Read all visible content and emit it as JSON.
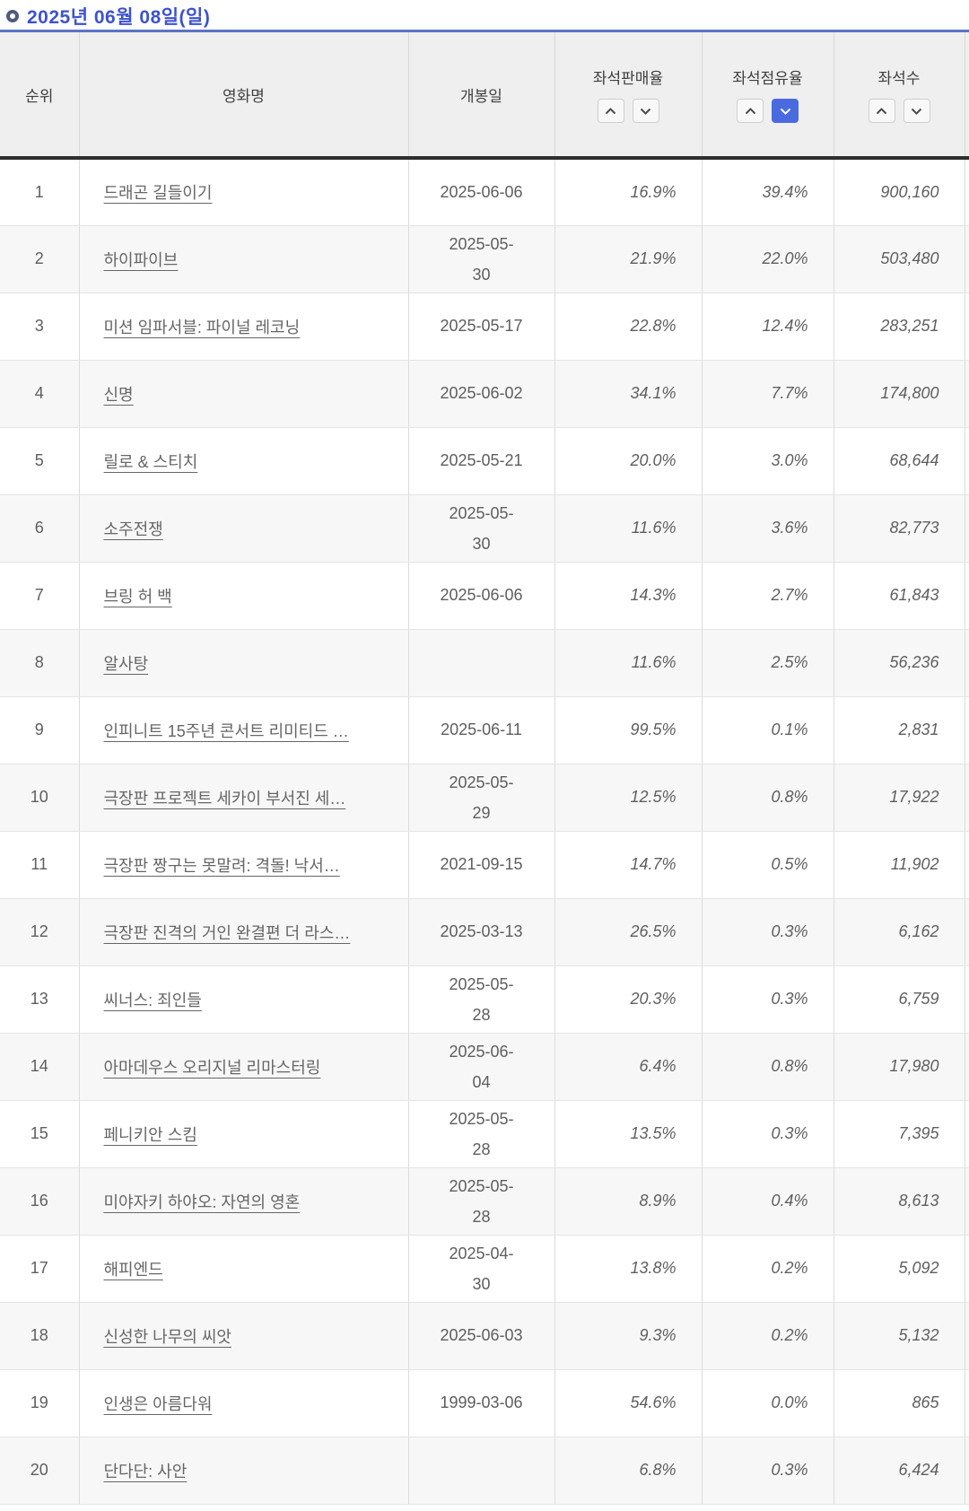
{
  "page": {
    "date_title": "2025년 06월 08일(일)"
  },
  "colors": {
    "accent_blue": "#4a6be0",
    "title_blue": "#3d52cf",
    "rule_blue": "#5b74c8"
  },
  "table": {
    "columns": {
      "rank": "순위",
      "title": "영화명",
      "release": "개봉일",
      "seat_sales_rate": "좌석판매율",
      "seat_share_rate": "좌석점유율",
      "seat_count": "좌석수"
    },
    "sort": {
      "active_column": "seat_share_rate",
      "active_direction": "desc"
    },
    "rows": [
      {
        "rank": "1",
        "title": "드래곤 길들이기",
        "release": "2025-06-06",
        "release_wrapped": false,
        "seat_sales_rate": "16.9%",
        "seat_share_rate": "39.4%",
        "seat_count": "900,160"
      },
      {
        "rank": "2",
        "title": "하이파이브",
        "release": "2025-05-30",
        "release_wrapped": true,
        "seat_sales_rate": "21.9%",
        "seat_share_rate": "22.0%",
        "seat_count": "503,480"
      },
      {
        "rank": "3",
        "title": "미션 임파서블: 파이널 레코닝",
        "release": "2025-05-17",
        "release_wrapped": false,
        "seat_sales_rate": "22.8%",
        "seat_share_rate": "12.4%",
        "seat_count": "283,251"
      },
      {
        "rank": "4",
        "title": "신명",
        "release": "2025-06-02",
        "release_wrapped": false,
        "seat_sales_rate": "34.1%",
        "seat_share_rate": "7.7%",
        "seat_count": "174,800"
      },
      {
        "rank": "5",
        "title": "릴로 & 스티치",
        "release": "2025-05-21",
        "release_wrapped": false,
        "seat_sales_rate": "20.0%",
        "seat_share_rate": "3.0%",
        "seat_count": "68,644"
      },
      {
        "rank": "6",
        "title": "소주전쟁",
        "release": "2025-05-30",
        "release_wrapped": true,
        "seat_sales_rate": "11.6%",
        "seat_share_rate": "3.6%",
        "seat_count": "82,773"
      },
      {
        "rank": "7",
        "title": "브링 허 백",
        "release": "2025-06-06",
        "release_wrapped": false,
        "seat_sales_rate": "14.3%",
        "seat_share_rate": "2.7%",
        "seat_count": "61,843"
      },
      {
        "rank": "8",
        "title": "알사탕",
        "release": "",
        "release_wrapped": false,
        "seat_sales_rate": "11.6%",
        "seat_share_rate": "2.5%",
        "seat_count": "56,236"
      },
      {
        "rank": "9",
        "title": "인피니트 15주년 콘서트 리미티드 …",
        "release": "2025-06-11",
        "release_wrapped": false,
        "seat_sales_rate": "99.5%",
        "seat_share_rate": "0.1%",
        "seat_count": "2,831"
      },
      {
        "rank": "10",
        "title": "극장판 프로젝트 세카이 부서진 세…",
        "release": "2025-05-29",
        "release_wrapped": true,
        "seat_sales_rate": "12.5%",
        "seat_share_rate": "0.8%",
        "seat_count": "17,922"
      },
      {
        "rank": "11",
        "title": "극장판 짱구는 못말려: 격돌! 낙서…",
        "release": "2021-09-15",
        "release_wrapped": false,
        "seat_sales_rate": "14.7%",
        "seat_share_rate": "0.5%",
        "seat_count": "11,902"
      },
      {
        "rank": "12",
        "title": "극장판 진격의 거인 완결편 더 라스…",
        "release": "2025-03-13",
        "release_wrapped": false,
        "seat_sales_rate": "26.5%",
        "seat_share_rate": "0.3%",
        "seat_count": "6,162"
      },
      {
        "rank": "13",
        "title": "씨너스: 죄인들",
        "release": "2025-05-28",
        "release_wrapped": true,
        "seat_sales_rate": "20.3%",
        "seat_share_rate": "0.3%",
        "seat_count": "6,759"
      },
      {
        "rank": "14",
        "title": "아마데우스 오리지널 리마스터링",
        "release": "2025-06-04",
        "release_wrapped": true,
        "seat_sales_rate": "6.4%",
        "seat_share_rate": "0.8%",
        "seat_count": "17,980"
      },
      {
        "rank": "15",
        "title": "페니키안 스킴",
        "release": "2025-05-28",
        "release_wrapped": true,
        "seat_sales_rate": "13.5%",
        "seat_share_rate": "0.3%",
        "seat_count": "7,395"
      },
      {
        "rank": "16",
        "title": "미야자키 하야오: 자연의 영혼",
        "release": "2025-05-28",
        "release_wrapped": true,
        "seat_sales_rate": "8.9%",
        "seat_share_rate": "0.4%",
        "seat_count": "8,613"
      },
      {
        "rank": "17",
        "title": "해피엔드",
        "release": "2025-04-30",
        "release_wrapped": true,
        "seat_sales_rate": "13.8%",
        "seat_share_rate": "0.2%",
        "seat_count": "5,092"
      },
      {
        "rank": "18",
        "title": "신성한 나무의 씨앗",
        "release": "2025-06-03",
        "release_wrapped": false,
        "seat_sales_rate": "9.3%",
        "seat_share_rate": "0.2%",
        "seat_count": "5,132"
      },
      {
        "rank": "19",
        "title": "인생은 아름다워",
        "release": "1999-03-06",
        "release_wrapped": false,
        "seat_sales_rate": "54.6%",
        "seat_share_rate": "0.0%",
        "seat_count": "865"
      },
      {
        "rank": "20",
        "title": "단다단: 사안",
        "release": "",
        "release_wrapped": false,
        "seat_sales_rate": "6.8%",
        "seat_share_rate": "0.3%",
        "seat_count": "6,424"
      }
    ]
  }
}
